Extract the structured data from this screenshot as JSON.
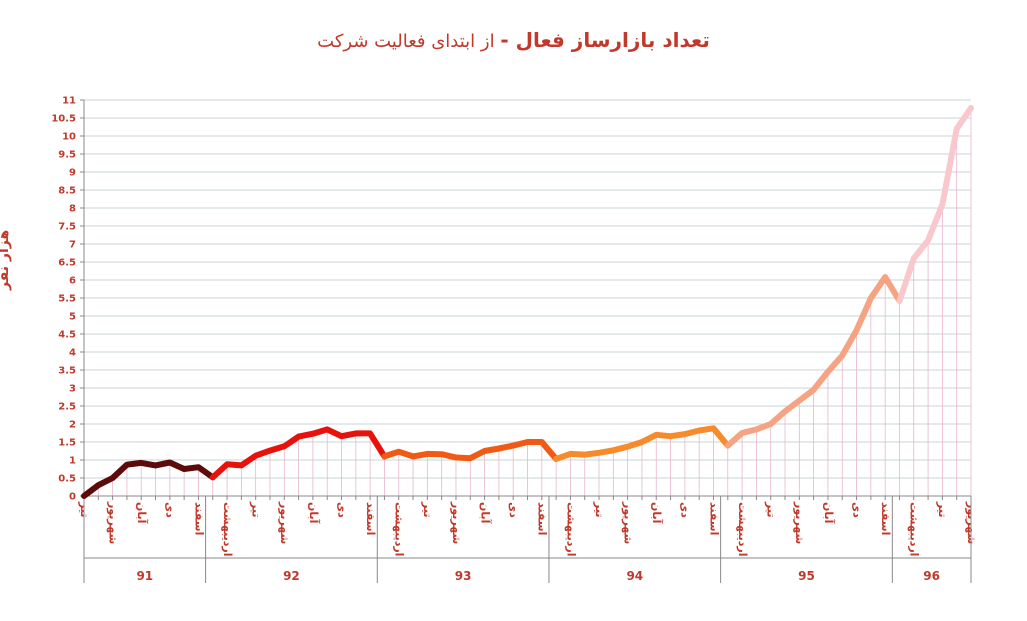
{
  "chart_data": {
    "type": "line",
    "title_bold": "تعداد بازارساز فعال -",
    "title_rest": " از ابتدای فعالیت شرکت",
    "ylabel": "هزار نفر",
    "ylim": [
      0,
      11
    ],
    "ytick_step": 0.5,
    "ytick_labels": [
      "0",
      "0.5",
      "1",
      "1.5",
      "2",
      "2.5",
      "3",
      "3.5",
      "4",
      "4.5",
      "5",
      "5.5",
      "6",
      "6.5",
      "7",
      "7.5",
      "8",
      "8.5",
      "9",
      "9.5",
      "10",
      "10.5",
      "11"
    ],
    "grid": true,
    "month_labels": [
      {
        "index": 0,
        "label": "تیر"
      },
      {
        "index": 2,
        "label": "شهریور"
      },
      {
        "index": 4,
        "label": "آبان"
      },
      {
        "index": 6,
        "label": "دی"
      },
      {
        "index": 8,
        "label": "اسفند"
      },
      {
        "index": 10,
        "label": "اردیبهشت"
      },
      {
        "index": 12,
        "label": "تیر"
      },
      {
        "index": 14,
        "label": "شهریور"
      },
      {
        "index": 16,
        "label": "آبان"
      },
      {
        "index": 18,
        "label": "دی"
      },
      {
        "index": 20,
        "label": "اسفند"
      },
      {
        "index": 22,
        "label": "اردیبهشت"
      },
      {
        "index": 24,
        "label": "تیر"
      },
      {
        "index": 26,
        "label": "شهریور"
      },
      {
        "index": 28,
        "label": "آبان"
      },
      {
        "index": 30,
        "label": "دی"
      },
      {
        "index": 32,
        "label": "اسفند"
      },
      {
        "index": 34,
        "label": "اردیبهشت"
      },
      {
        "index": 36,
        "label": "تیر"
      },
      {
        "index": 38,
        "label": "شهریور"
      },
      {
        "index": 40,
        "label": "آبان"
      },
      {
        "index": 42,
        "label": "دی"
      },
      {
        "index": 44,
        "label": "اسفند"
      },
      {
        "index": 46,
        "label": "اردیبهشت"
      },
      {
        "index": 48,
        "label": "تیر"
      },
      {
        "index": 50,
        "label": "شهریور"
      },
      {
        "index": 52,
        "label": "آبان"
      },
      {
        "index": 54,
        "label": "دی"
      },
      {
        "index": 56,
        "label": "اسفند"
      },
      {
        "index": 58,
        "label": "اردیبهشت"
      },
      {
        "index": 60,
        "label": "تیر"
      },
      {
        "index": 62,
        "label": "شهریور"
      }
    ],
    "years": [
      {
        "label": "91",
        "start": 0,
        "end": 9,
        "color": "#5c0a0a"
      },
      {
        "label": "92",
        "start": 9,
        "end": 21,
        "color": "#e8120c"
      },
      {
        "label": "93",
        "start": 21,
        "end": 33,
        "color": "#f05a14"
      },
      {
        "label": "94",
        "start": 33,
        "end": 45,
        "color": "#f78a2a"
      },
      {
        "label": "95",
        "start": 45,
        "end": 57,
        "color": "#f5a382"
      },
      {
        "label": "96",
        "start": 57,
        "end": 63,
        "color": "#f8c8cc"
      }
    ],
    "values": [
      0.0,
      0.3,
      0.5,
      0.87,
      0.92,
      0.85,
      0.93,
      0.75,
      0.8,
      0.52,
      0.88,
      0.85,
      1.12,
      1.26,
      1.38,
      1.65,
      1.73,
      1.85,
      1.66,
      1.74,
      1.74,
      1.1,
      1.23,
      1.1,
      1.17,
      1.16,
      1.07,
      1.05,
      1.25,
      1.32,
      1.4,
      1.5,
      1.5,
      1.03,
      1.17,
      1.15,
      1.2,
      1.27,
      1.37,
      1.5,
      1.7,
      1.66,
      1.72,
      1.82,
      1.88,
      1.4,
      1.75,
      1.85,
      2.0,
      2.35,
      2.65,
      2.95,
      3.45,
      3.9,
      4.6,
      5.5,
      6.08,
      5.42,
      6.6,
      7.1,
      8.1,
      10.2,
      10.78
    ]
  }
}
